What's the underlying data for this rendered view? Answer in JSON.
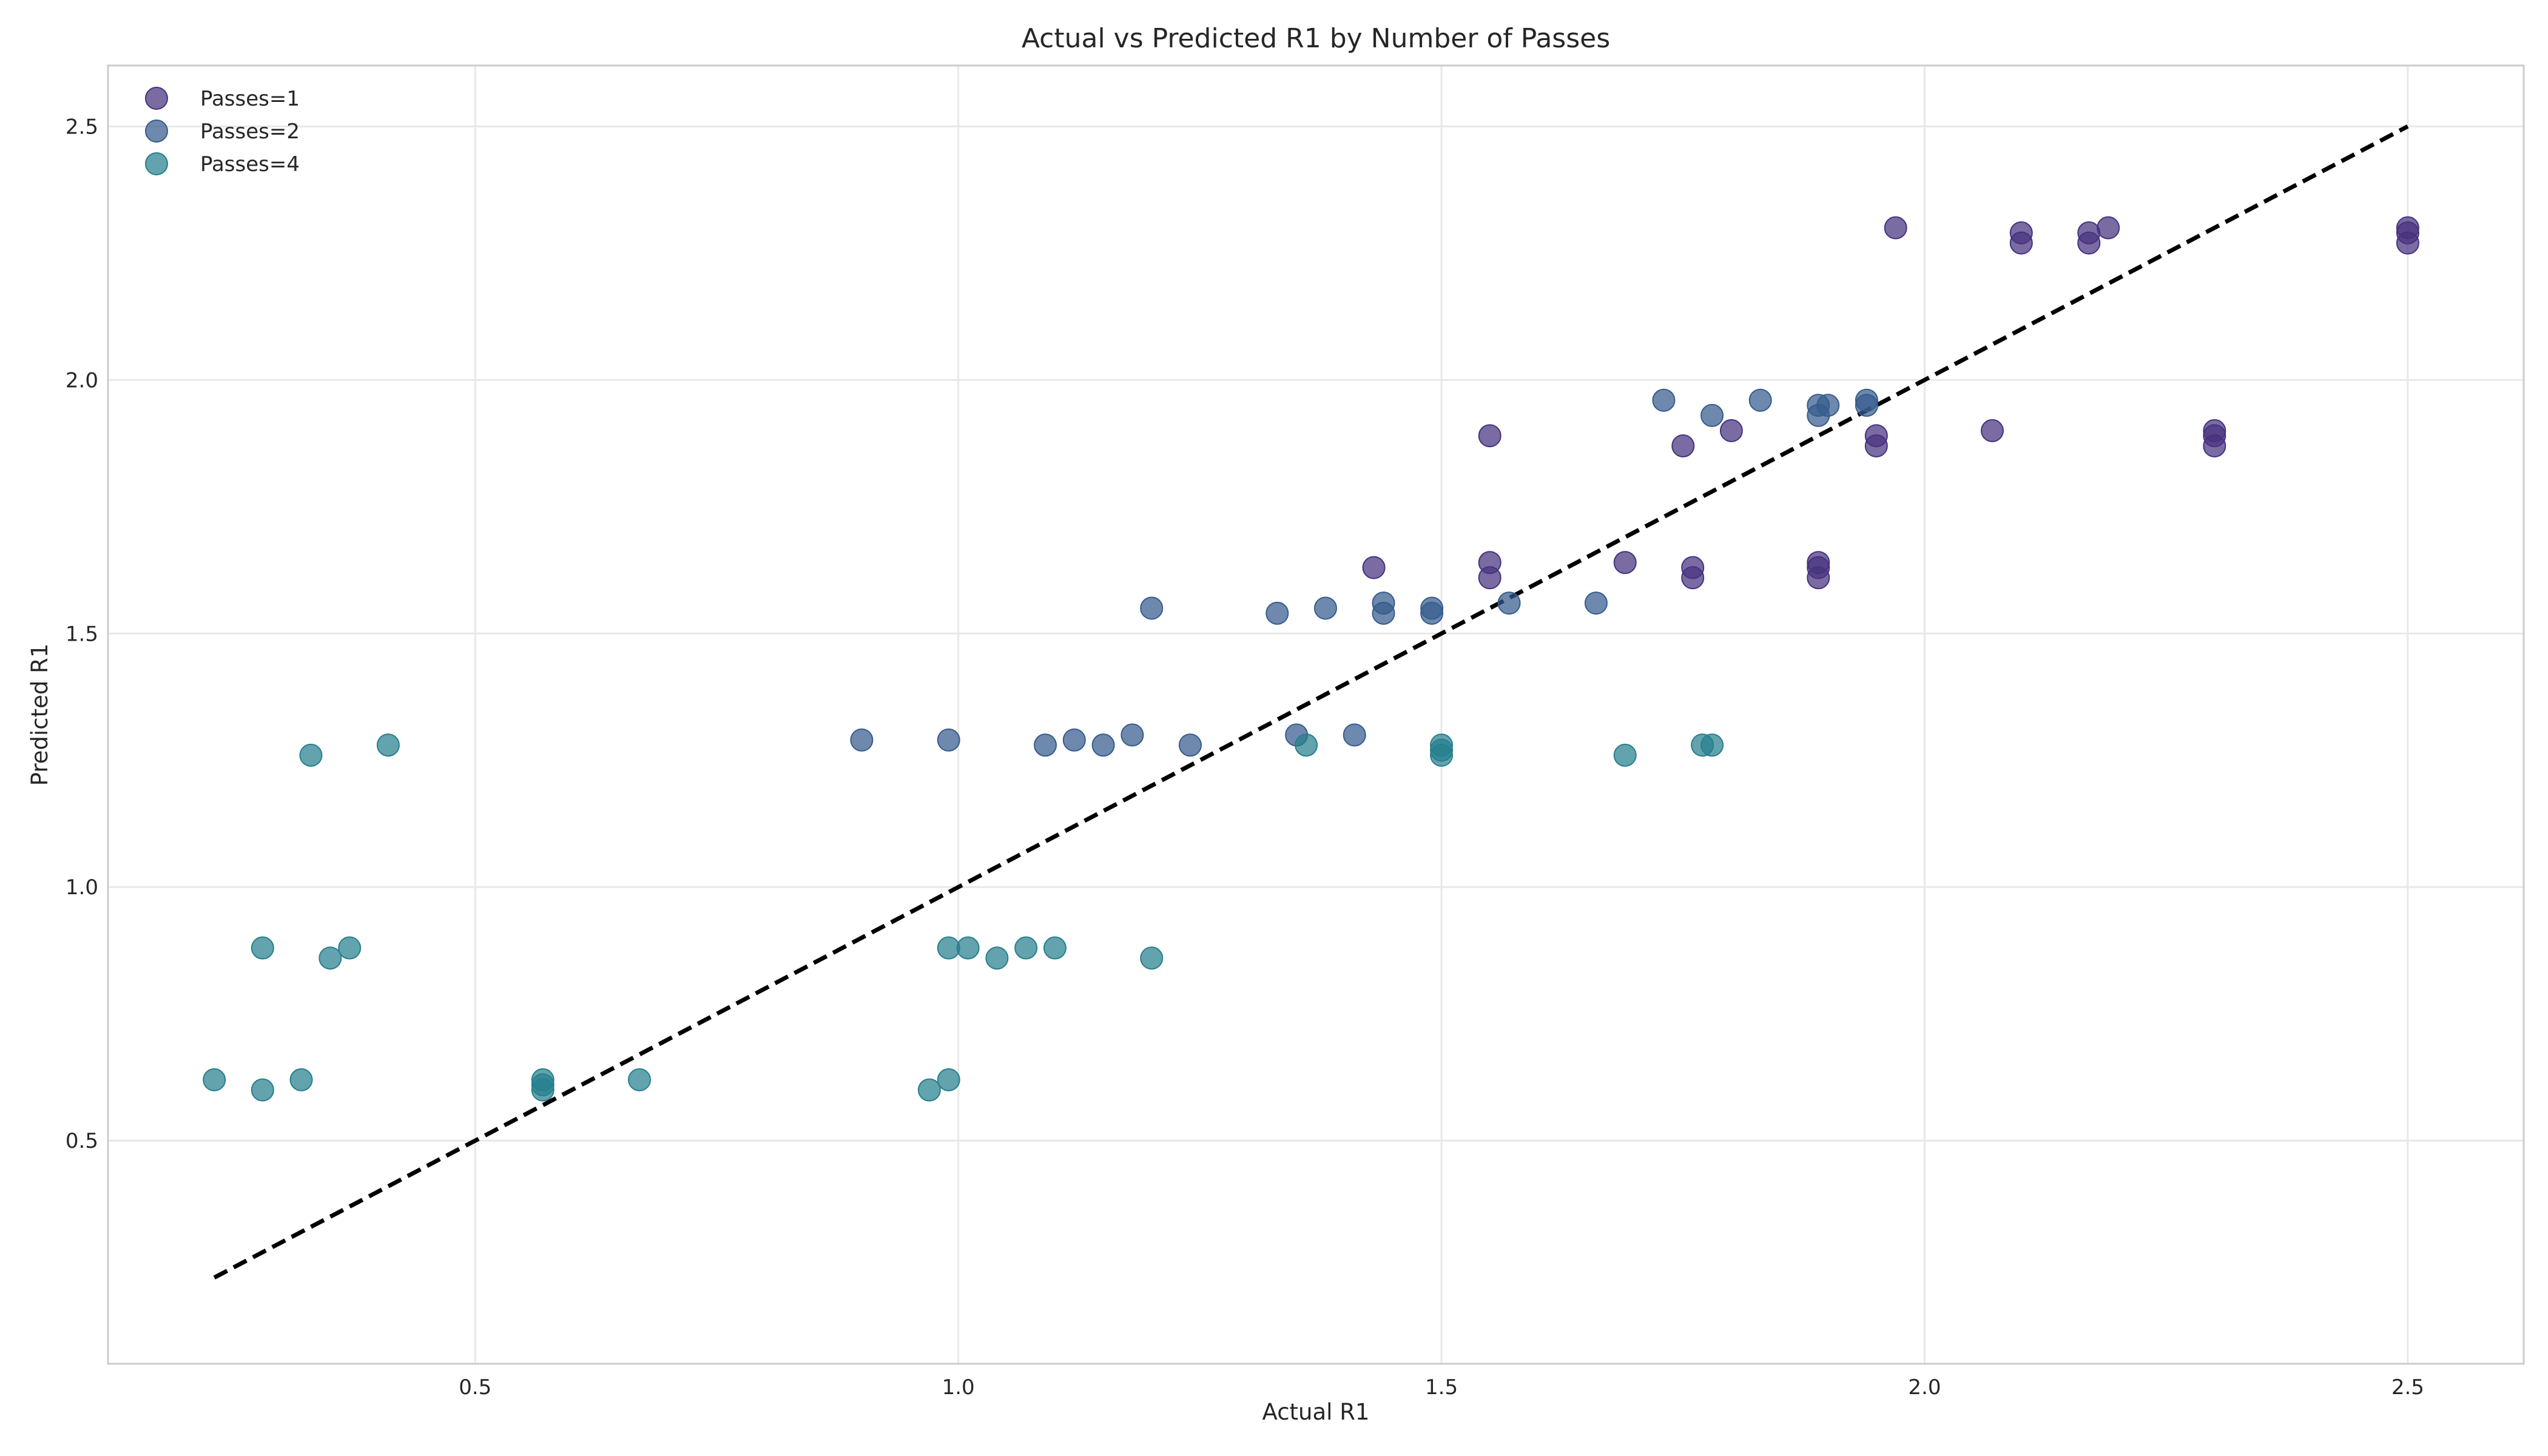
{
  "chart_data": {
    "type": "scatter",
    "title": "Actual vs Predicted R1 by Number of Passes",
    "xlabel": "Actual R1",
    "ylabel": "Predicted R1",
    "xlim": [
      0.12,
      2.62
    ],
    "ylim": [
      0.06,
      2.62
    ],
    "xticks": [
      0.5,
      1.0,
      1.5,
      2.0,
      2.5
    ],
    "yticks": [
      0.5,
      1.0,
      1.5,
      2.0,
      2.5
    ],
    "grid": true,
    "legend_position": "top-left",
    "reference_line": {
      "style": "dashed",
      "color": "#000000",
      "from": [
        0.23,
        0.23
      ],
      "to": [
        2.5,
        2.5
      ]
    },
    "series": [
      {
        "name": "Passes=1",
        "color": "#46327e",
        "points": [
          [
            1.97,
            2.3
          ],
          [
            2.1,
            2.29
          ],
          [
            2.1,
            2.27
          ],
          [
            2.17,
            2.29
          ],
          [
            2.17,
            2.27
          ],
          [
            2.19,
            2.3
          ],
          [
            2.5,
            2.3
          ],
          [
            2.5,
            2.29
          ],
          [
            2.5,
            2.27
          ],
          [
            1.55,
            1.89
          ],
          [
            1.75,
            1.87
          ],
          [
            1.8,
            1.9
          ],
          [
            1.95,
            1.89
          ],
          [
            1.95,
            1.87
          ],
          [
            2.07,
            1.9
          ],
          [
            2.3,
            1.9
          ],
          [
            2.3,
            1.89
          ],
          [
            2.3,
            1.87
          ],
          [
            1.43,
            1.63
          ],
          [
            1.55,
            1.64
          ],
          [
            1.55,
            1.61
          ],
          [
            1.69,
            1.64
          ],
          [
            1.76,
            1.63
          ],
          [
            1.76,
            1.61
          ],
          [
            1.89,
            1.64
          ],
          [
            1.89,
            1.63
          ],
          [
            1.89,
            1.61
          ]
        ]
      },
      {
        "name": "Passes=2",
        "color": "#365c8d",
        "points": [
          [
            1.73,
            1.96
          ],
          [
            1.78,
            1.93
          ],
          [
            1.83,
            1.96
          ],
          [
            1.89,
            1.95
          ],
          [
            1.89,
            1.93
          ],
          [
            1.9,
            1.95
          ],
          [
            1.94,
            1.96
          ],
          [
            1.94,
            1.95
          ],
          [
            1.2,
            1.55
          ],
          [
            1.33,
            1.54
          ],
          [
            1.38,
            1.55
          ],
          [
            1.44,
            1.56
          ],
          [
            1.44,
            1.54
          ],
          [
            1.49,
            1.55
          ],
          [
            1.49,
            1.54
          ],
          [
            1.57,
            1.56
          ],
          [
            1.66,
            1.56
          ],
          [
            0.9,
            1.29
          ],
          [
            0.99,
            1.29
          ],
          [
            1.09,
            1.28
          ],
          [
            1.12,
            1.29
          ],
          [
            1.15,
            1.28
          ],
          [
            1.18,
            1.3
          ],
          [
            1.24,
            1.28
          ],
          [
            1.35,
            1.3
          ],
          [
            1.41,
            1.3
          ]
        ]
      },
      {
        "name": "Passes=4",
        "color": "#277f8e",
        "points": [
          [
            0.33,
            1.26
          ],
          [
            0.41,
            1.28
          ],
          [
            1.36,
            1.28
          ],
          [
            1.5,
            1.28
          ],
          [
            1.5,
            1.27
          ],
          [
            1.5,
            1.26
          ],
          [
            1.69,
            1.26
          ],
          [
            1.77,
            1.28
          ],
          [
            1.78,
            1.28
          ],
          [
            0.28,
            0.88
          ],
          [
            0.35,
            0.86
          ],
          [
            0.37,
            0.88
          ],
          [
            0.99,
            0.88
          ],
          [
            1.01,
            0.88
          ],
          [
            1.04,
            0.86
          ],
          [
            1.07,
            0.88
          ],
          [
            1.1,
            0.88
          ],
          [
            1.2,
            0.86
          ],
          [
            0.23,
            0.62
          ],
          [
            0.28,
            0.6
          ],
          [
            0.32,
            0.62
          ],
          [
            0.57,
            0.62
          ],
          [
            0.57,
            0.61
          ],
          [
            0.57,
            0.6
          ],
          [
            0.67,
            0.62
          ],
          [
            0.97,
            0.6
          ],
          [
            0.99,
            0.62
          ]
        ]
      }
    ]
  }
}
